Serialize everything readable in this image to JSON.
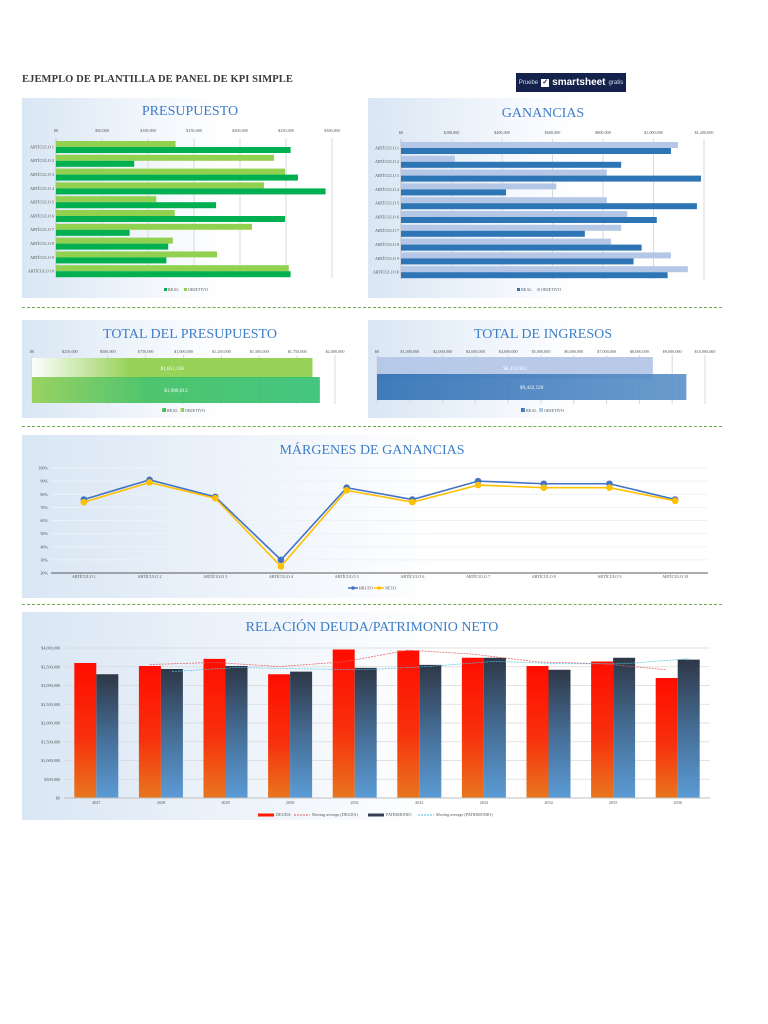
{
  "header": {
    "title": "EJEMPLO DE PLANTILLA DE PANEL DE KPI SIMPLE",
    "promo": {
      "prefix": "Pruebe",
      "brand": "smartsheet",
      "suffix": "gratis"
    }
  },
  "colors": {
    "title_blue": "#3d7dc6",
    "real_green": "#00b050",
    "objetivo_green": "#92d050",
    "real_blue": "#2e75b6",
    "objetivo_blue": "#b4c7e7",
    "bruto": "#4472c4",
    "neto": "#ffc000",
    "deuda": "#ff0000",
    "patrimonio": "#333f50",
    "separator": "#6ab04c"
  },
  "chart_data": [
    {
      "type": "bar",
      "orientation": "horizontal",
      "title": "PRESUPUESTO",
      "categories": [
        "ARTÍCULO 1",
        "ARTÍCULO 2",
        "ARTÍCULO 3",
        "ARTÍCULO 4",
        "ARTÍCULO 5",
        "ARTÍCULO 6",
        "ARTÍCULO 7",
        "ARTÍCULO 8",
        "ARTÍCULO 9",
        "ARTÍCULO 10"
      ],
      "xlim": [
        0,
        300000
      ],
      "ticks": [
        "$0",
        "$50,000",
        "$100,000",
        "$150,000",
        "$200,000",
        "$250,000",
        "$300,000"
      ],
      "series": [
        {
          "name": "OBJETIVO",
          "color": "#92d050",
          "values": [
            130000,
            237000,
            249000,
            226000,
            109000,
            129000,
            213000,
            127000,
            175000,
            253000
          ]
        },
        {
          "name": "REAL",
          "color": "#00b050",
          "values": [
            255000,
            85000,
            263000,
            293000,
            174000,
            249000,
            80000,
            122000,
            120000,
            255000
          ]
        }
      ],
      "legend": [
        "REAL",
        "OBJETIVO"
      ],
      "legend_position": "bottom",
      "grid": true
    },
    {
      "type": "bar",
      "orientation": "horizontal",
      "title": "GANANCIAS",
      "categories": [
        "ARTÍCULO 1",
        "ARTÍCULO 2",
        "ARTÍCULO 3",
        "ARTÍCULO 4",
        "ARTÍCULO 5",
        "ARTÍCULO 6",
        "ARTÍCULO 7",
        "ARTÍCULO 8",
        "ARTÍCULO 9",
        "ARTÍCULO 10"
      ],
      "xlim": [
        0,
        1200000
      ],
      "ticks": [
        "$0",
        "$200,000",
        "$400,000",
        "$600,000",
        "$800,000",
        "$1,000,000",
        "$1,200,000"
      ],
      "series": [
        {
          "name": "OBJETIVO",
          "color": "#b4c7e7",
          "values": [
            1097000,
            213000,
            815000,
            615000,
            815000,
            896000,
            872000,
            832000,
            1069000,
            1136000
          ]
        },
        {
          "name": "REAL",
          "color": "#2e75b6",
          "values": [
            1069000,
            872000,
            1188000,
            416000,
            1172000,
            1013000,
            728000,
            953000,
            921000,
            1056000
          ]
        }
      ],
      "legend": [
        "REAL",
        "OBJETIVO"
      ],
      "legend_position": "bottom",
      "grid": true
    },
    {
      "type": "bar",
      "orientation": "horizontal",
      "title": "TOTAL DEL PRESUPUESTO",
      "xlim": [
        0,
        2000000
      ],
      "ticks": [
        "$0",
        "$250,000",
        "$500,000",
        "$750,000",
        "$1,000,000",
        "$1,250,000",
        "$1,500,000",
        "$1,750,000",
        "$2,000,000"
      ],
      "series": [
        {
          "name": "OBJETIVO",
          "color": "#92d050",
          "value": 1851336,
          "label": "$1,851,336"
        },
        {
          "name": "REAL",
          "color": "#00b050",
          "value": 1900013,
          "label": "$1,900,013"
        }
      ],
      "legend": [
        "REAL",
        "OBJETIVO"
      ],
      "legend_position": "bottom"
    },
    {
      "type": "bar",
      "orientation": "horizontal",
      "title": "TOTAL DE INGRESOS",
      "xlim": [
        0,
        10000000
      ],
      "ticks": [
        "$0",
        "$1,000,000",
        "$2,000,000",
        "$3,000,000",
        "$4,000,000",
        "$5,000,000",
        "$6,000,000",
        "$7,000,000",
        "$8,000,000",
        "$9,000,000",
        "$10,000,000"
      ],
      "series": [
        {
          "name": "OBJETIVO",
          "color": "#b4c7e7",
          "value": 8410963,
          "label": "$8,410,963"
        },
        {
          "name": "REAL",
          "color": "#2e75b6",
          "value": 9432128,
          "label": "$9,432,128"
        }
      ],
      "legend": [
        "REAL",
        "OBJETIVO"
      ],
      "legend_position": "bottom"
    },
    {
      "type": "line",
      "title": "MÁRGENES DE GANANCIAS",
      "categories": [
        "ARTÍCULO 1",
        "ARTÍCULO 2",
        "ARTÍCULO 3",
        "ARTÍCULO 4",
        "ARTÍCULO 5",
        "ARTÍCULO 6",
        "ARTÍCULO 7",
        "ARTÍCULO 8",
        "ARTÍCULO 9",
        "ARTÍCULO 10"
      ],
      "ylim": [
        20,
        100
      ],
      "ticks": [
        "20%",
        "30%",
        "40%",
        "50%",
        "60%",
        "70%",
        "80%",
        "90%",
        "100%"
      ],
      "series": [
        {
          "name": "BRUTO",
          "color": "#4472c4",
          "values": [
            76,
            91,
            78,
            30,
            85,
            76,
            90,
            88,
            88,
            76
          ]
        },
        {
          "name": "NETO",
          "color": "#ffc000",
          "values": [
            74,
            89,
            77,
            25,
            83,
            74,
            87,
            85,
            85,
            75
          ]
        }
      ],
      "legend_position": "bottom",
      "grid": true
    },
    {
      "type": "bar",
      "title": "RELACIÓN DEUDA/PATRIMONIO NETO",
      "categories": [
        "2027",
        "2028",
        "2029",
        "2030",
        "2031",
        "2032",
        "2033",
        "2034",
        "2035",
        "2036"
      ],
      "ylim": [
        0,
        4000000
      ],
      "ticks": [
        "$0",
        "$500,000",
        "$1,000,000",
        "$1,500,000",
        "$2,000,000",
        "$2,500,000",
        "$3,000,000",
        "$3,500,000",
        "$4,000,000"
      ],
      "series": [
        {
          "name": "DEUDA",
          "color": "#ff0000",
          "values": [
            3600000,
            3520000,
            3710000,
            3300000,
            3960000,
            3930000,
            3740000,
            3520000,
            3640000,
            3200000
          ]
        },
        {
          "name": "PATRIMONIO",
          "color": "#333f50",
          "values": [
            3300000,
            3440000,
            3520000,
            3370000,
            3470000,
            3550000,
            3740000,
            3420000,
            3740000,
            3690000
          ]
        }
      ],
      "trendlines": [
        "Moving average (DEUDA)",
        "Moving average (PATRIMONIO)"
      ],
      "legend": [
        "DEUDA",
        "Moving average (DEUDA)",
        "PATRIMONIO",
        "Moving average (PATRIMONIO)"
      ],
      "legend_position": "bottom",
      "grid": true
    }
  ]
}
